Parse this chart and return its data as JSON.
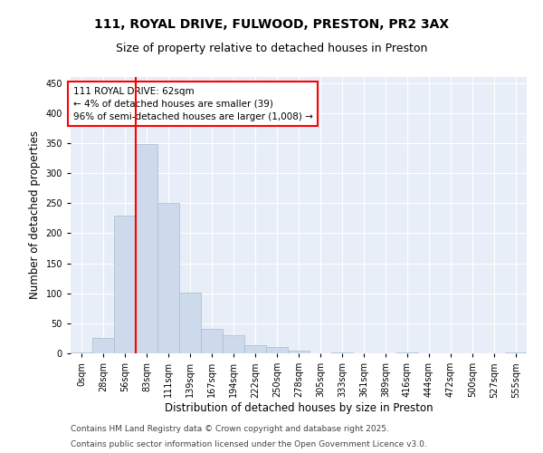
{
  "title_line1": "111, ROYAL DRIVE, FULWOOD, PRESTON, PR2 3AX",
  "title_line2": "Size of property relative to detached houses in Preston",
  "xlabel": "Distribution of detached houses by size in Preston",
  "ylabel": "Number of detached properties",
  "bar_color": "#ccdaeb",
  "bar_edge_color": "#aabbcc",
  "background_color": "#e8eef8",
  "grid_color": "#ffffff",
  "fig_background": "#ffffff",
  "categories": [
    "0sqm",
    "28sqm",
    "56sqm",
    "83sqm",
    "111sqm",
    "139sqm",
    "167sqm",
    "194sqm",
    "222sqm",
    "250sqm",
    "278sqm",
    "305sqm",
    "333sqm",
    "361sqm",
    "389sqm",
    "416sqm",
    "444sqm",
    "472sqm",
    "500sqm",
    "527sqm",
    "555sqm"
  ],
  "bar_heights": [
    2,
    25,
    230,
    348,
    250,
    101,
    40,
    30,
    13,
    10,
    5,
    0,
    2,
    0,
    0,
    1,
    0,
    0,
    0,
    0,
    2
  ],
  "ylim": [
    0,
    460
  ],
  "yticks": [
    0,
    50,
    100,
    150,
    200,
    250,
    300,
    350,
    400,
    450
  ],
  "property_line_x": 2.5,
  "annotation_box_text": "111 ROYAL DRIVE: 62sqm\n← 4% of detached houses are smaller (39)\n96% of semi-detached houses are larger (1,008) →",
  "footer_line1": "Contains HM Land Registry data © Crown copyright and database right 2025.",
  "footer_line2": "Contains public sector information licensed under the Open Government Licence v3.0.",
  "title_fontsize": 10,
  "subtitle_fontsize": 9,
  "axis_label_fontsize": 8.5,
  "tick_fontsize": 7,
  "annotation_fontsize": 7.5,
  "footer_fontsize": 6.5
}
